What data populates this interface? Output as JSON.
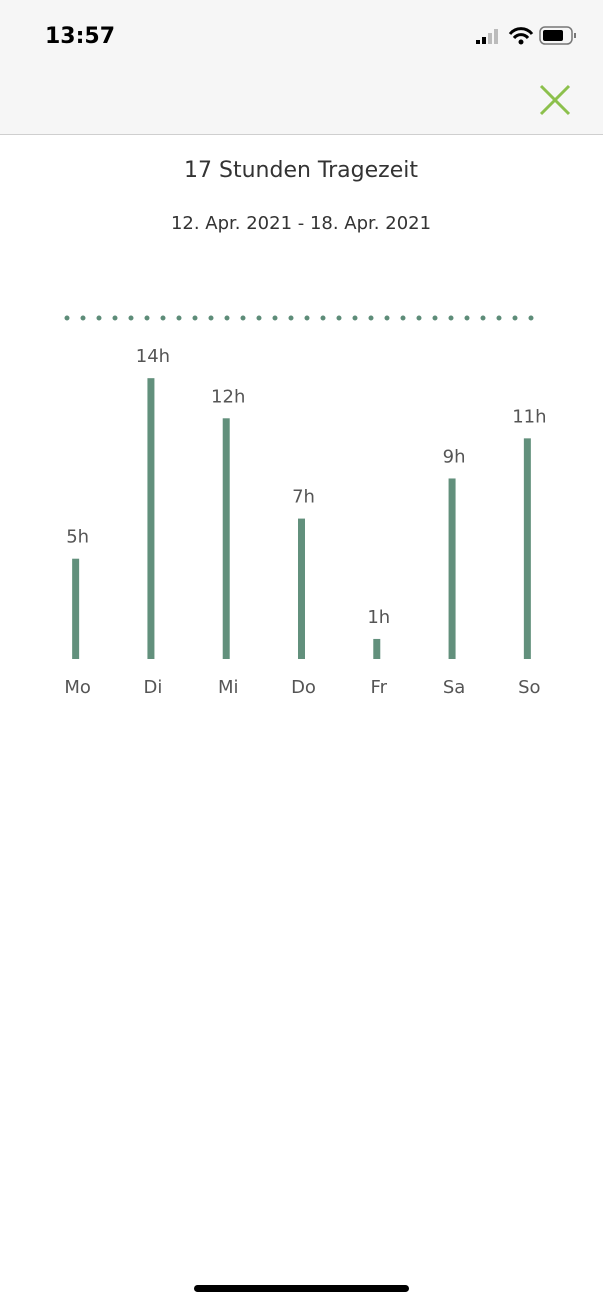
{
  "status_bar": {
    "time": "13:57"
  },
  "chart_data": {
    "type": "bar",
    "title": "17 Stunden Tragezeit",
    "subtitle": "12. Apr. 2021 - 18. Apr. 2021",
    "categories": [
      "Mo",
      "Di",
      "Mi",
      "Do",
      "Fr",
      "Sa",
      "So"
    ],
    "values": [
      5,
      14,
      12,
      7,
      1,
      9,
      11
    ],
    "value_labels": [
      "5h",
      "14h",
      "12h",
      "7h",
      "1h",
      "9h",
      "11h"
    ],
    "color": "#62907c",
    "ylim": [
      0,
      17
    ],
    "target_line": 17,
    "target_color": "#5d8c78"
  }
}
